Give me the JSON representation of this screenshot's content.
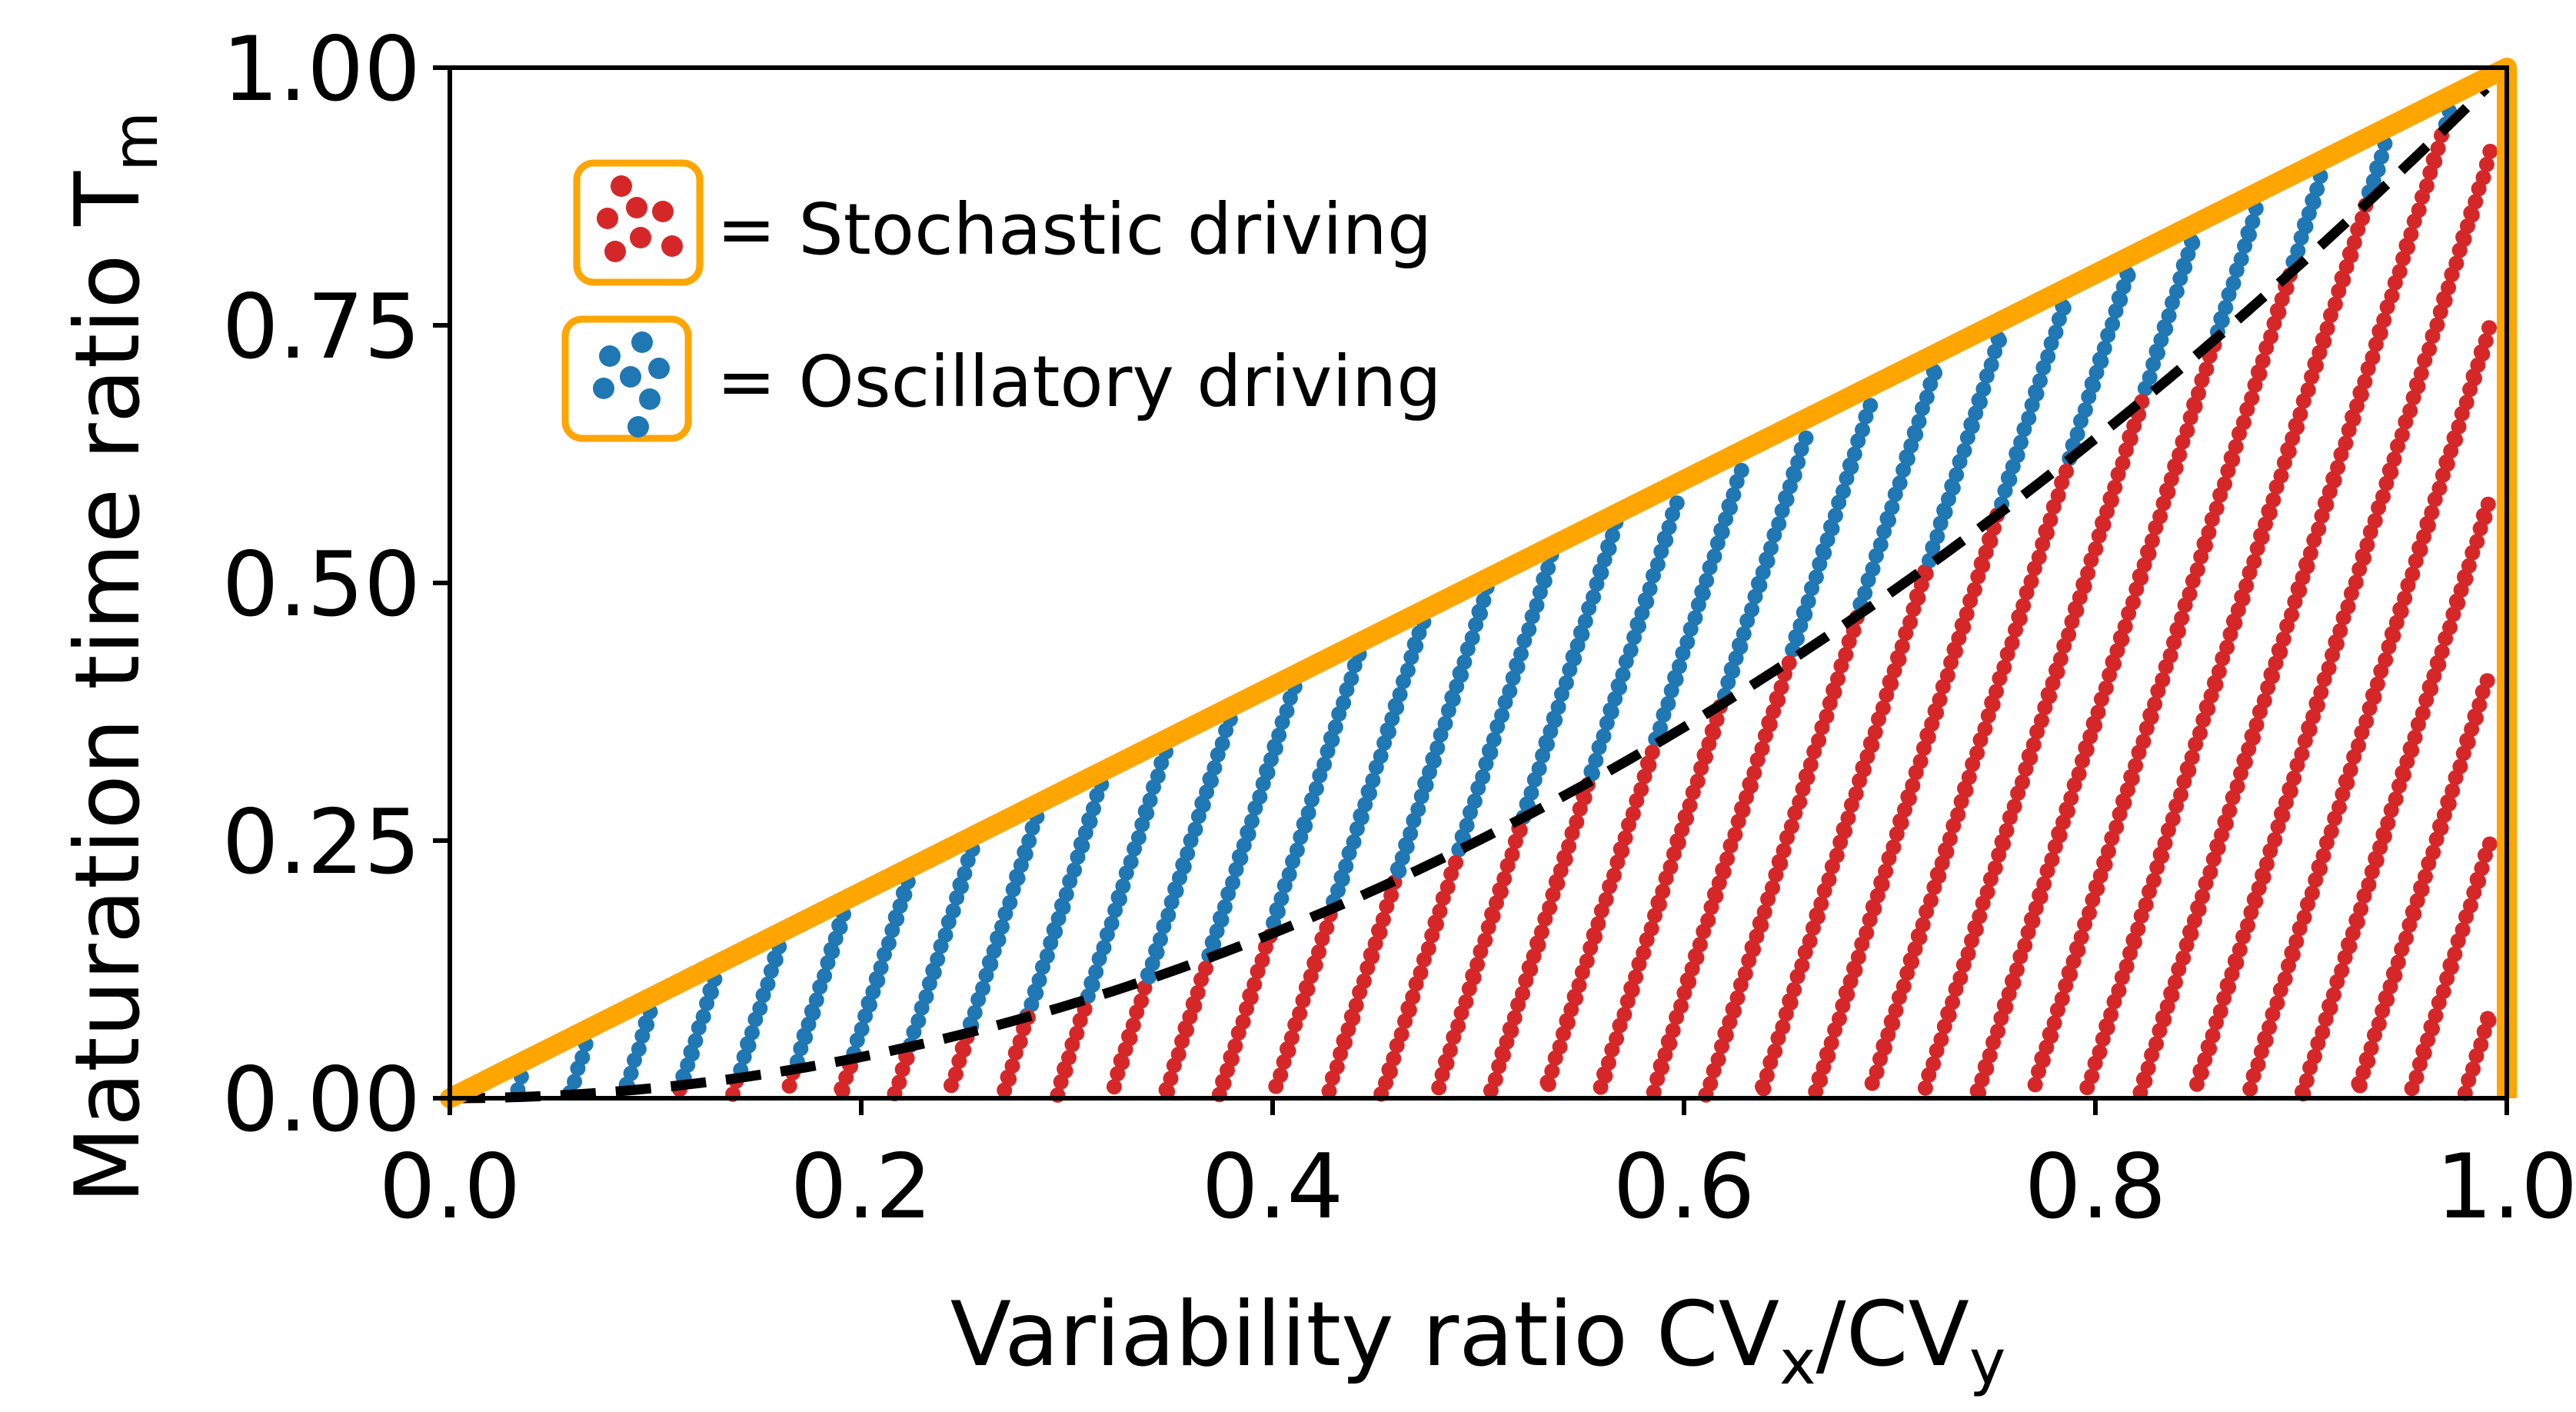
{
  "chart_data": {
    "type": "scatter",
    "title": "",
    "xlabel": {
      "main": "Variability ratio CV",
      "sub1": "x",
      "mid": "/CV",
      "sub2": "y"
    },
    "ylabel": {
      "main": "Maturation time ratio T",
      "sub": "m"
    },
    "xlim": [
      0.0,
      1.0
    ],
    "ylim": [
      0.0,
      1.0
    ],
    "x_ticks": [
      "0.0",
      "0.2",
      "0.4",
      "0.6",
      "0.8",
      "1.0"
    ],
    "y_ticks": [
      "0.00",
      "0.25",
      "0.50",
      "0.75",
      "1.00"
    ],
    "grid": false,
    "legend": {
      "placement": "top-left",
      "entries": [
        {
          "label": "= Stochastic driving",
          "color": "#d62728"
        },
        {
          "label": "= Oscillatory driving",
          "color": "#1f77b4"
        }
      ]
    },
    "boundary": {
      "color": "#ffa500",
      "diagonal": [
        [
          0.0,
          0.0
        ],
        [
          1.0,
          1.0
        ]
      ],
      "vertical_x": 1.0
    },
    "threshold_curve": {
      "style": "dashed",
      "color": "#000000",
      "equation": "y = x^2",
      "x_range": [
        0.0,
        0.99
      ]
    },
    "series": [
      {
        "name": "Stochastic driving",
        "color": "#d62728",
        "region": "y < x^2"
      },
      {
        "name": "Oscillatory driving",
        "color": "#1f77b4",
        "region": "x^2 <= y <= x"
      }
    ]
  }
}
